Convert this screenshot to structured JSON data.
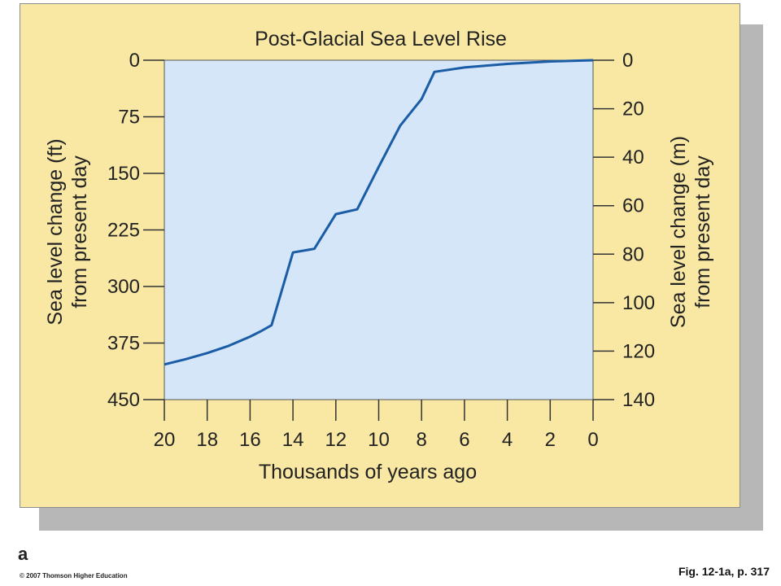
{
  "chart_data": {
    "type": "line",
    "title": "Post-Glacial Sea Level Rise",
    "xlabel": "Thousands of years ago",
    "ylabel_left": [
      "Sea level change (ft)",
      "from present day"
    ],
    "ylabel_right": [
      "Sea level change (m)",
      "from present day"
    ],
    "xlim": [
      20,
      0
    ],
    "ylim_left": [
      0,
      450
    ],
    "ylim_right": [
      0,
      140
    ],
    "x_ticks": [
      20,
      18,
      16,
      14,
      12,
      10,
      8,
      6,
      4,
      2,
      0
    ],
    "y_ticks_left": [
      0,
      75,
      150,
      225,
      300,
      375,
      450
    ],
    "y_ticks_right": [
      0,
      20,
      40,
      60,
      80,
      100,
      120,
      140
    ],
    "grid": false,
    "series": [
      {
        "unit": "m",
        "x": [
          20,
          19,
          18,
          17,
          16,
          15.5,
          15,
          14,
          13,
          12,
          11,
          10,
          9,
          8,
          7.4,
          6,
          4,
          2,
          0
        ],
        "y": [
          125.5,
          123.3,
          120.8,
          117.8,
          114,
          111.8,
          109.3,
          79.3,
          77.8,
          63.5,
          61.5,
          44,
          27,
          16,
          4.8,
          3,
          1.5,
          0.5,
          0
        ]
      }
    ],
    "colors": {
      "plot_background": "#d4e6f7",
      "line": "#1a5ca6",
      "card_background": "#f9e8a4"
    }
  },
  "footer": {
    "panel_letter": "a",
    "copyright": "© 2007 Thomson Higher Education",
    "figure_ref": "Fig. 12-1a, p. 317"
  }
}
